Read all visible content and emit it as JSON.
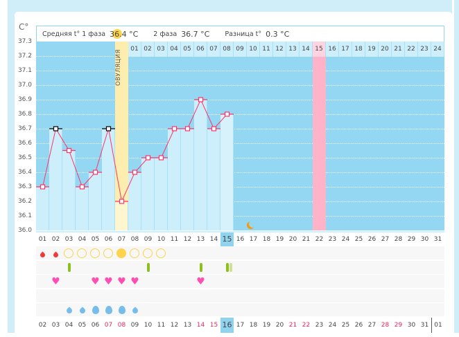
{
  "unit_label": "C°",
  "summary": {
    "phase1_label": "Средняя t° 1 фаза",
    "phase1_value": "36.4 °C",
    "phase2_label": "2 фаза",
    "phase2_value": "36.7 °C",
    "diff_label": "Разница t°",
    "diff_value": "0.3 °C"
  },
  "ovulation_label": "ОВУЛЯЦИЯ",
  "y_ticks": [
    "37.3",
    "37.2",
    "37.1",
    "37.0",
    "36.9",
    "36.8",
    "36.7",
    "36.6",
    "36.5",
    "36.4",
    "36.3",
    "36.2",
    "36.1",
    "36.0"
  ],
  "ylim": [
    36.0,
    37.3
  ],
  "temperatures": [
    36.3,
    36.7,
    36.55,
    36.3,
    36.4,
    36.7,
    36.2,
    36.4,
    36.5,
    36.5,
    36.7,
    36.7,
    36.9,
    36.7,
    36.8
  ],
  "excluded_days": [
    2,
    6
  ],
  "ovulation_day": 7,
  "top_days": [
    "01",
    "02",
    "03",
    "04",
    "05",
    "06",
    "07",
    "08",
    "09",
    "10",
    "11",
    "12",
    "13",
    "14",
    "15",
    "16",
    "17",
    "18",
    "19",
    "20",
    "21",
    "22",
    "23",
    "24"
  ],
  "expected_day_col": 22,
  "cycle_days": [
    "01",
    "02",
    "03",
    "04",
    "05",
    "06",
    "07",
    "08",
    "09",
    "10",
    "11",
    "12",
    "13",
    "14",
    "15",
    "16",
    "17",
    "18",
    "19",
    "20",
    "21",
    "22",
    "23",
    "24",
    "25",
    "26",
    "27",
    "28",
    "29",
    "30",
    "31"
  ],
  "current_day_col": 15,
  "dates": [
    "02",
    "03",
    "04",
    "05",
    "06",
    "07",
    "08",
    "09",
    "10",
    "11",
    "12",
    "13",
    "14",
    "15",
    "16",
    "17",
    "18",
    "19",
    "20",
    "21",
    "22",
    "23",
    "24",
    "25",
    "26",
    "27",
    "28",
    "29",
    "30",
    "31",
    "01"
  ],
  "weekend_date_cols": [
    5,
    6,
    12,
    13,
    19,
    20,
    26,
    27
  ],
  "icons": {
    "menstruation": [
      1,
      2
    ],
    "ovulation_test": [
      3,
      4,
      5,
      6,
      7,
      8,
      9,
      10
    ],
    "ovulation_test_positive": 7,
    "pill": [
      3,
      9,
      13,
      15
    ],
    "sex": [
      2,
      5,
      6,
      7,
      8,
      13
    ],
    "discharge_small": [
      3,
      4,
      8
    ],
    "discharge_large": [
      5,
      6,
      7
    ],
    "moon_day": 17
  },
  "colors": {
    "line": "#ff3366",
    "plot": "#93d7f2",
    "bar": "#cdeefb",
    "ovulation": "#fdeeb0",
    "expected": "#ffb3c8",
    "today": "#8fd3ef",
    "weekend": "#e8255a"
  }
}
